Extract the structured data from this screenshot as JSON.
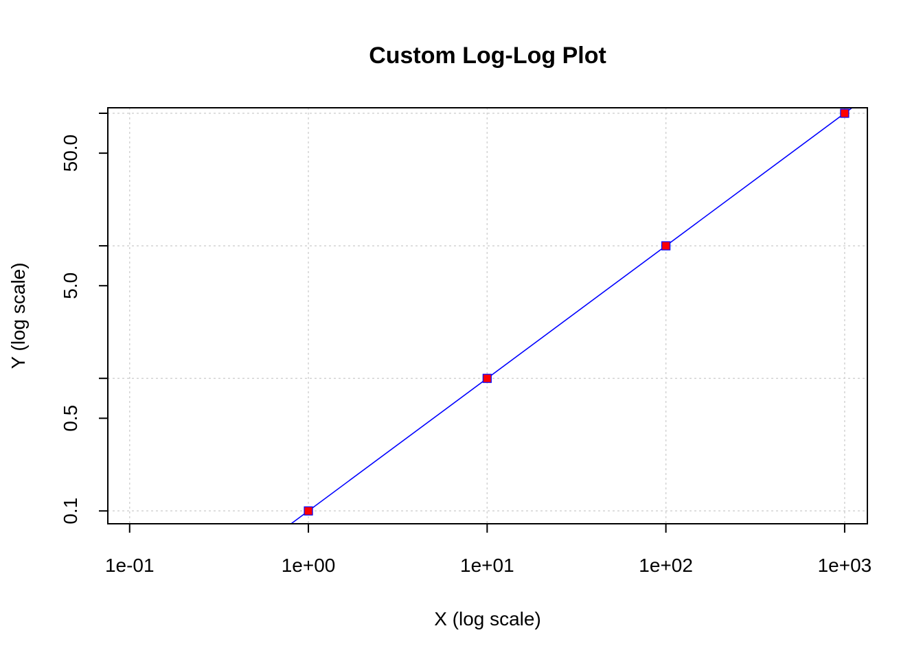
{
  "chart_data": {
    "type": "scatter",
    "title": "Custom Log-Log Plot",
    "xlabel": "X (log scale)",
    "ylabel": "Y (log scale)",
    "x_scale": "log",
    "y_scale": "log",
    "xlim": [
      0.0755,
      1340
    ],
    "ylim": [
      0.08,
      110
    ],
    "x_ticks": [
      {
        "value": 0.1,
        "label": "1e-01"
      },
      {
        "value": 1,
        "label": "1e+00"
      },
      {
        "value": 10,
        "label": "1e+01"
      },
      {
        "value": 100,
        "label": "1e+02"
      },
      {
        "value": 1000,
        "label": "1e+03"
      }
    ],
    "y_ticks": [
      {
        "value": 0.1,
        "label": "0.1"
      },
      {
        "value": 0.5,
        "label": "0.5"
      },
      {
        "value": 1,
        "label": ""
      },
      {
        "value": 5,
        "label": "5.0"
      },
      {
        "value": 10,
        "label": ""
      },
      {
        "value": 50,
        "label": "50.0"
      },
      {
        "value": 100,
        "label": ""
      }
    ],
    "x_grid": [
      0.1,
      1,
      10,
      100,
      1000
    ],
    "y_grid": [
      0.1,
      1,
      10,
      100
    ],
    "grid": true,
    "series": [
      {
        "x": [
          1,
          10,
          100,
          1000
        ],
        "y": [
          0.1,
          1,
          10,
          100
        ],
        "color": "#FF0000",
        "marker": "square"
      }
    ],
    "fit_line": {
      "slope": 1,
      "intercept": -1,
      "color": "#0000FF"
    },
    "colors": {
      "points": "#FF0000",
      "point_border": "#0000FF",
      "line": "#0000FF",
      "grid": "#D3D3D3",
      "axes": "#000000"
    }
  }
}
